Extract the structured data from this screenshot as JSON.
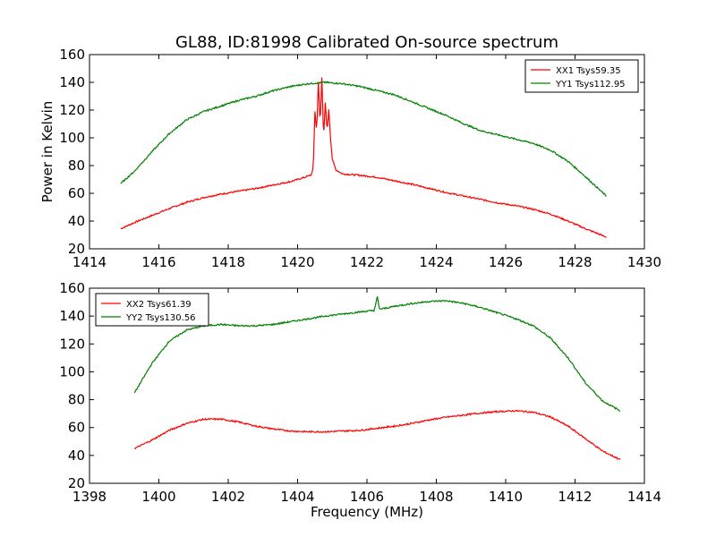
{
  "figure": {
    "title": "GL88, ID:81998 Calibrated On-source spectrum"
  },
  "chart_data": [
    {
      "type": "line",
      "title": "GL88, ID:81998 Calibrated On-source spectrum",
      "xlabel": "",
      "ylabel": "Power in Kelvin",
      "xlim": [
        1414,
        1430
      ],
      "ylim": [
        20,
        160
      ],
      "xticks": [
        1414,
        1416,
        1418,
        1420,
        1422,
        1424,
        1426,
        1428,
        1430
      ],
      "yticks": [
        20,
        40,
        60,
        80,
        100,
        120,
        140,
        160
      ],
      "legend": "top-right",
      "grid": false,
      "series": [
        {
          "name": "XX1 Tsys59.35",
          "color": "#ff0000",
          "x": [
            1414.9,
            1415.3,
            1415.8,
            1416.3,
            1416.8,
            1417.3,
            1417.8,
            1418.3,
            1418.8,
            1419.3,
            1419.8,
            1420.2,
            1420.4,
            1420.45,
            1420.5,
            1420.55,
            1420.6,
            1420.65,
            1420.7,
            1420.75,
            1420.8,
            1420.85,
            1420.9,
            1420.95,
            1421.0,
            1421.1,
            1421.3,
            1421.8,
            1422.3,
            1422.8,
            1423.3,
            1423.8,
            1424.3,
            1424.8,
            1425.3,
            1425.8,
            1426.3,
            1426.8,
            1427.3,
            1427.8,
            1428.3,
            1428.9
          ],
          "values": [
            34.5,
            39,
            44,
            49,
            53.5,
            57,
            59.5,
            61.5,
            63.5,
            66,
            68.5,
            71.5,
            73.5,
            78,
            119,
            105,
            140,
            110,
            144,
            100,
            125,
            105,
            120,
            100,
            85,
            77,
            74,
            73,
            71.5,
            69,
            66.5,
            63.5,
            60.5,
            58,
            55.5,
            53,
            51,
            48.5,
            45,
            40,
            34.5,
            28.5
          ]
        },
        {
          "name": "YY1 Tsys112.95",
          "color": "#008000",
          "x": [
            1414.9,
            1415.3,
            1415.8,
            1416.3,
            1416.8,
            1417.3,
            1417.8,
            1418.3,
            1418.8,
            1419.3,
            1419.8,
            1420.3,
            1420.8,
            1421.3,
            1421.8,
            1422.3,
            1422.8,
            1423.3,
            1423.8,
            1424.3,
            1424.8,
            1425.3,
            1425.8,
            1426.3,
            1426.8,
            1427.3,
            1427.8,
            1428.3,
            1428.9
          ],
          "values": [
            67,
            76,
            90,
            103,
            113,
            119,
            123,
            127,
            130,
            134,
            137,
            139,
            140,
            139,
            137,
            134,
            131,
            126,
            121,
            116,
            110,
            105,
            102,
            99,
            96,
            91,
            83,
            72,
            58
          ]
        }
      ]
    },
    {
      "type": "line",
      "title": "",
      "xlabel": "Frequency (MHz)",
      "ylabel": "",
      "xlim": [
        1398,
        1414
      ],
      "ylim": [
        20,
        160
      ],
      "xticks": [
        1398,
        1400,
        1402,
        1404,
        1406,
        1408,
        1410,
        1412,
        1414
      ],
      "yticks": [
        20,
        40,
        60,
        80,
        100,
        120,
        140,
        160
      ],
      "legend": "top-left",
      "grid": false,
      "series": [
        {
          "name": "XX2 Tsys61.39",
          "color": "#ff0000",
          "x": [
            1399.3,
            1399.8,
            1400.3,
            1400.8,
            1401.3,
            1401.8,
            1402.3,
            1402.8,
            1403.3,
            1403.8,
            1404.3,
            1404.8,
            1405.3,
            1405.8,
            1406.3,
            1406.8,
            1407.3,
            1407.8,
            1408.3,
            1408.8,
            1409.3,
            1409.8,
            1410.3,
            1410.8,
            1411.3,
            1411.8,
            1412.3,
            1412.8,
            1413.3
          ],
          "values": [
            45,
            51,
            58,
            63,
            66,
            66,
            64,
            61,
            59,
            57.5,
            57,
            57,
            57.5,
            58,
            59.5,
            61,
            63,
            65.5,
            67.5,
            69,
            70.5,
            71.5,
            72,
            71,
            67.5,
            61,
            52,
            43,
            37
          ]
        },
        {
          "name": "YY2 Tsys130.56",
          "color": "#008000",
          "x": [
            1399.3,
            1399.8,
            1400.3,
            1400.8,
            1401.3,
            1401.8,
            1402.3,
            1402.8,
            1403.3,
            1403.8,
            1404.3,
            1404.8,
            1405.3,
            1405.8,
            1406.2,
            1406.25,
            1406.3,
            1406.35,
            1406.4,
            1406.8,
            1407.3,
            1407.8,
            1408.3,
            1408.8,
            1409.3,
            1409.8,
            1410.3,
            1410.8,
            1411.3,
            1411.8,
            1412.3,
            1412.8,
            1413.3
          ],
          "values": [
            85,
            106,
            122,
            130,
            133,
            134,
            133,
            133,
            134,
            136,
            138,
            140,
            141.5,
            143,
            144,
            148,
            154,
            146,
            145,
            147,
            149,
            150.5,
            151,
            149,
            146,
            142,
            138,
            133,
            124,
            110,
            92,
            79,
            72
          ]
        }
      ]
    }
  ]
}
